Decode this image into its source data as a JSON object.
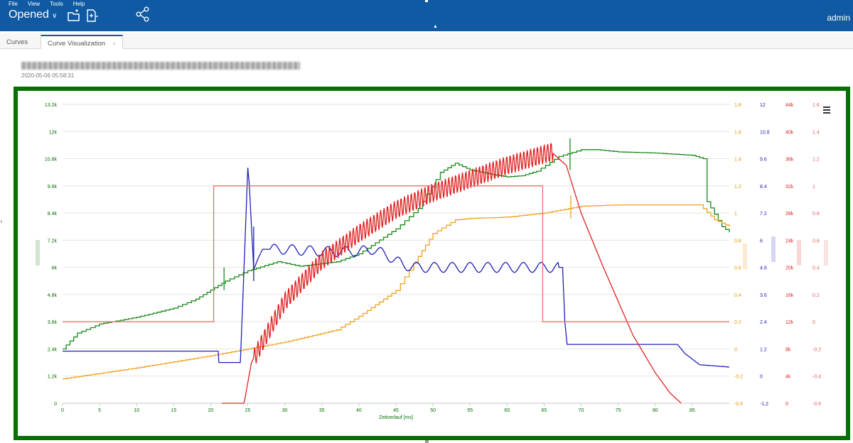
{
  "menu": {
    "file": "File",
    "view": "View",
    "tools": "Tools",
    "help": "Help"
  },
  "header": {
    "opened_label": "Opened",
    "user": "admin",
    "icons": {
      "open": "folder-open-icon",
      "new": "new-document-icon",
      "share": "share-icon",
      "dropdown": "chevron-down-icon"
    },
    "bg_color": "#0f5aa3"
  },
  "tabs": [
    {
      "label": "Curves"
    },
    {
      "label": "Curve Visualization"
    }
  ],
  "document": {
    "timestamp": "2020-05-06 05:58:31"
  },
  "chart_data": {
    "type": "line",
    "xlabel": "Zeitverlauf [ms]",
    "xlim": [
      0,
      90
    ],
    "x_ticks": [
      0,
      5,
      10,
      15,
      20,
      25,
      30,
      35,
      40,
      45,
      50,
      55,
      60,
      65,
      70,
      75,
      80,
      85
    ],
    "grid": true,
    "frame_color": "#067000",
    "axes": [
      {
        "id": "green",
        "color": "#067000",
        "position": "left",
        "range": [
          0,
          13200
        ],
        "ticks": [
          "0",
          "1.2k",
          "2.4k",
          "3.6k",
          "4.8k",
          "6k",
          "7.2k",
          "8.4k",
          "9.6k",
          "10.8k",
          "12k",
          "13.2k"
        ]
      },
      {
        "id": "orange",
        "color": "#e39600",
        "position": "right-1",
        "range": [
          -0.4,
          1.8
        ],
        "ticks": [
          "-0.4",
          "-0.2",
          "0",
          "0.2",
          "0.4",
          "0.6",
          "0.8",
          "1",
          "1.2",
          "1.4",
          "1.6",
          "1.8"
        ]
      },
      {
        "id": "blue",
        "color": "#1f1fb4",
        "position": "right-2",
        "range": [
          -1.2,
          12
        ],
        "ticks": [
          "-1.2",
          "0",
          "1.2",
          "2.4",
          "3.6",
          "4.8",
          "6",
          "7.2",
          "8.4",
          "9.6",
          "10.8",
          "12"
        ]
      },
      {
        "id": "red",
        "color": "#e02020",
        "position": "right-3",
        "range": [
          0,
          44000
        ],
        "ticks": [
          "0",
          "4k",
          "8k",
          "12k",
          "16k",
          "20k",
          "24k",
          "28k",
          "32k",
          "36k",
          "40k",
          "44k"
        ]
      },
      {
        "id": "salmon",
        "color": "#e06060",
        "position": "right-4",
        "range": [
          -0.6,
          1.6
        ],
        "ticks": [
          "-0.6",
          "-0.4",
          "-0.2",
          "0",
          "0.2",
          "0.4",
          "0.6",
          "0.8",
          "1",
          "1.2",
          "1.4",
          "1.6"
        ]
      }
    ],
    "series": [
      {
        "axis": "green",
        "color": "#1a8a1a",
        "x": [
          0,
          2,
          5,
          10,
          15,
          18,
          20,
          22,
          25,
          29,
          32,
          37,
          40,
          45,
          48,
          51,
          53,
          55,
          58,
          60,
          62,
          64,
          67,
          70,
          72,
          75,
          80,
          85,
          86.5,
          87,
          88,
          89,
          90
        ],
        "y": [
          2400,
          3100,
          3500,
          3800,
          4200,
          4600,
          5000,
          5400,
          5850,
          6250,
          6050,
          6250,
          6600,
          7700,
          8600,
          10200,
          10600,
          10300,
          10100,
          10000,
          10050,
          10250,
          10900,
          11200,
          11200,
          11100,
          11050,
          10950,
          10800,
          8900,
          8350,
          7800,
          7550
        ]
      },
      {
        "axis": "orange",
        "color": "#f0a020",
        "x": [
          0,
          10,
          20,
          30,
          37,
          40,
          45,
          48,
          50,
          53,
          55,
          60,
          65,
          70,
          75,
          80,
          86,
          88,
          90
        ],
        "y": [
          -0.22,
          -0.14,
          -0.05,
          0.05,
          0.14,
          0.24,
          0.43,
          0.68,
          0.85,
          0.95,
          0.96,
          0.97,
          1.0,
          1.05,
          1.06,
          1.06,
          1.06,
          0.95,
          0.9
        ]
      },
      {
        "axis": "blue",
        "color": "#2020b8",
        "x": [
          0,
          21,
          21.1,
          24,
          24.5,
          25,
          25.2,
          25.8,
          26.4,
          27,
          30,
          35,
          40,
          42,
          44,
          46,
          48,
          50,
          55,
          60,
          65,
          67.5,
          67.8,
          68.1,
          70,
          75,
          83,
          84,
          86,
          90
        ],
        "y": [
          1.1,
          1.1,
          0.6,
          0.6,
          4.8,
          9.2,
          8.5,
          4.7,
          5.2,
          5.6,
          5.6,
          5.5,
          5.5,
          5.6,
          5.3,
          4.9,
          4.8,
          4.8,
          4.8,
          4.8,
          4.8,
          4.8,
          2.4,
          1.4,
          1.4,
          1.4,
          1.4,
          1.0,
          0.5,
          0.4
        ]
      },
      {
        "axis": "red",
        "color": "#e02020",
        "x": [
          21.5,
          24.5,
          25.5,
          30,
          35,
          40,
          45,
          50,
          55,
          60,
          66,
          68,
          70,
          73,
          77,
          80,
          82,
          83.5
        ],
        "y": [
          0,
          0,
          6000,
          15000,
          21000,
          25000,
          28500,
          31000,
          33000,
          35000,
          37000,
          35000,
          28000,
          20000,
          10000,
          4500,
          1500,
          0
        ]
      },
      {
        "axis": "salmon",
        "color": "#e87070",
        "x": [
          0,
          20.4,
          20.4,
          64.8,
          64.8,
          90
        ],
        "y": [
          0,
          0,
          1.0,
          1.0,
          0,
          0
        ]
      }
    ]
  }
}
